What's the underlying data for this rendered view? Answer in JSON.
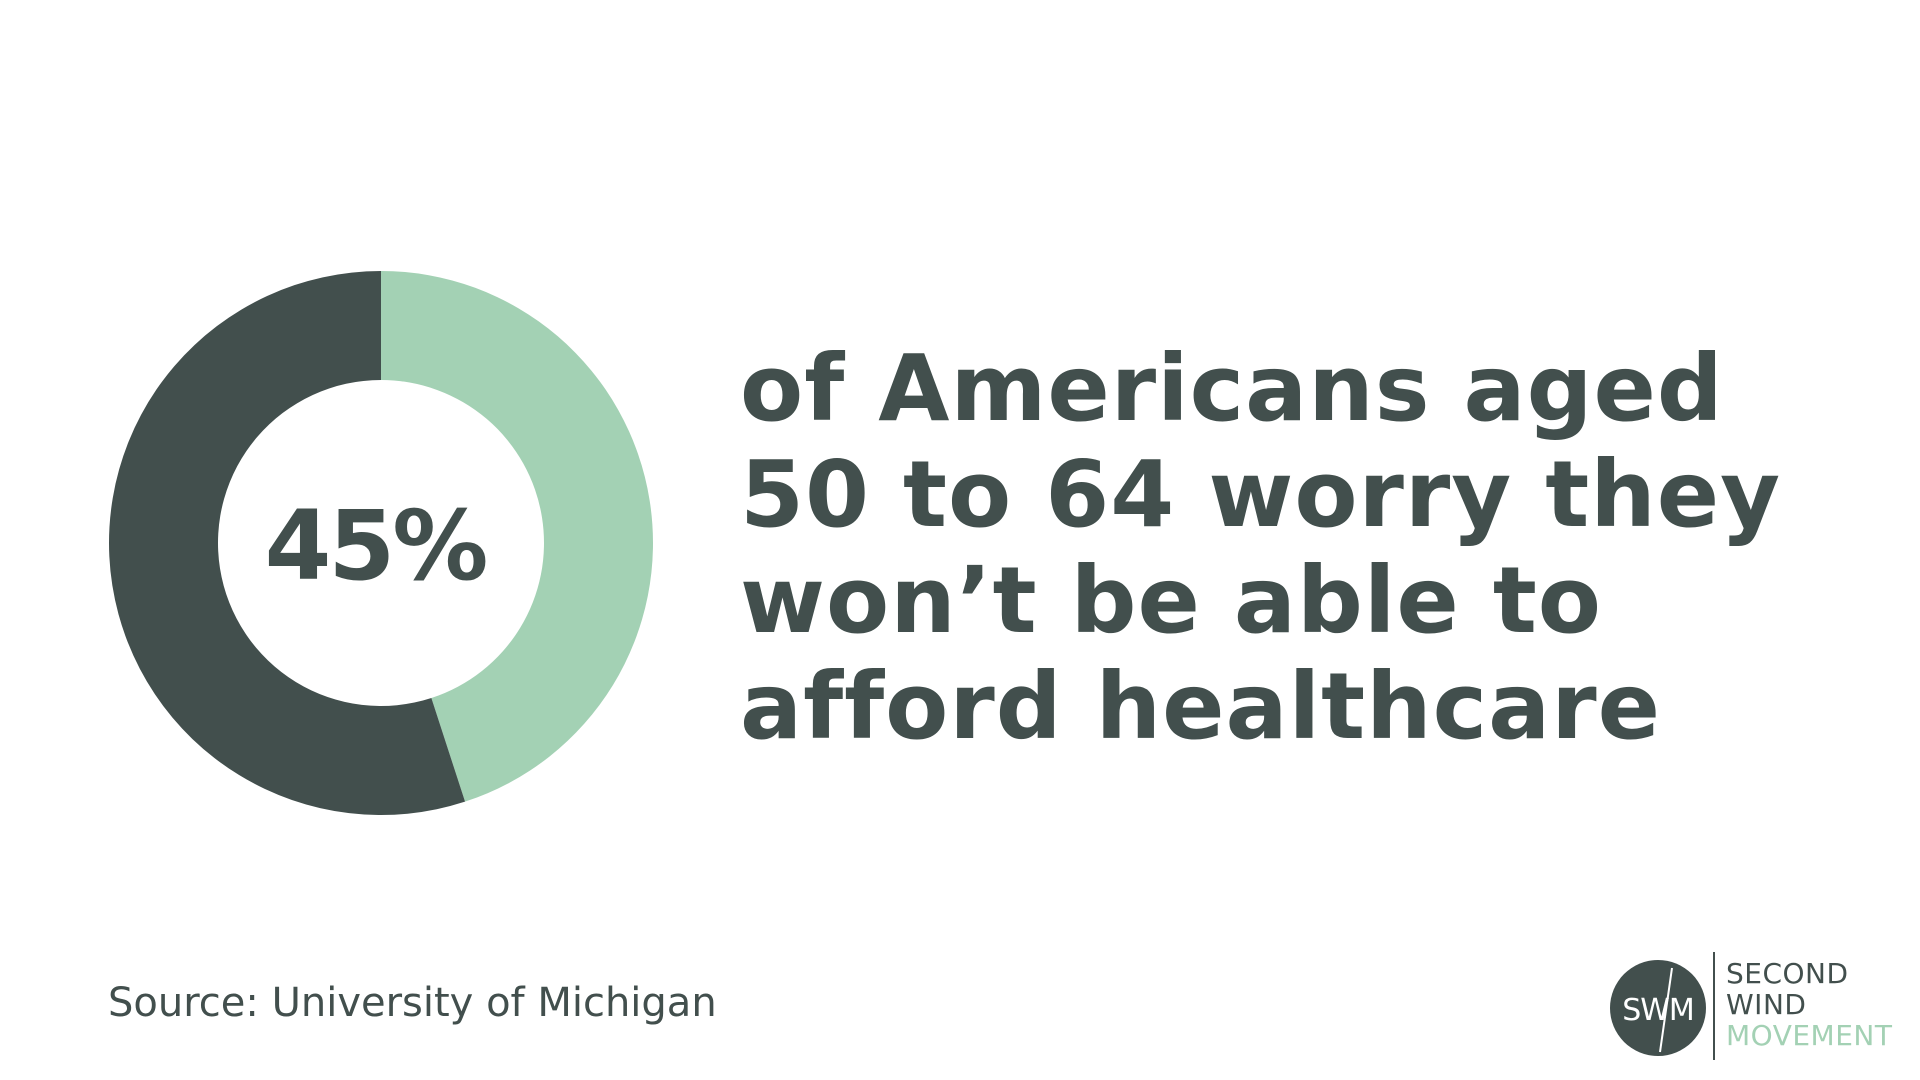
{
  "colors": {
    "dark": "#424f4d",
    "accent": "#a3d1b4",
    "background": "#ffffff"
  },
  "chart_data": {
    "type": "pie",
    "variant": "donut",
    "slices": [
      {
        "label": "",
        "value": 45,
        "color": "#a3d1b4"
      },
      {
        "label": "",
        "value": 55,
        "color": "#424f4d"
      }
    ],
    "center_label": "45%",
    "title": "",
    "legend": "none"
  },
  "headline": {
    "lines": [
      "of Americans aged",
      "50 to 64 worry they",
      "won’t be able to",
      "afford healthcare"
    ]
  },
  "source": "Source: University of Michigan",
  "logo": {
    "monogram": "SWM",
    "line1": "SECOND",
    "line2": "WIND",
    "line3": "MOVEMENT"
  }
}
